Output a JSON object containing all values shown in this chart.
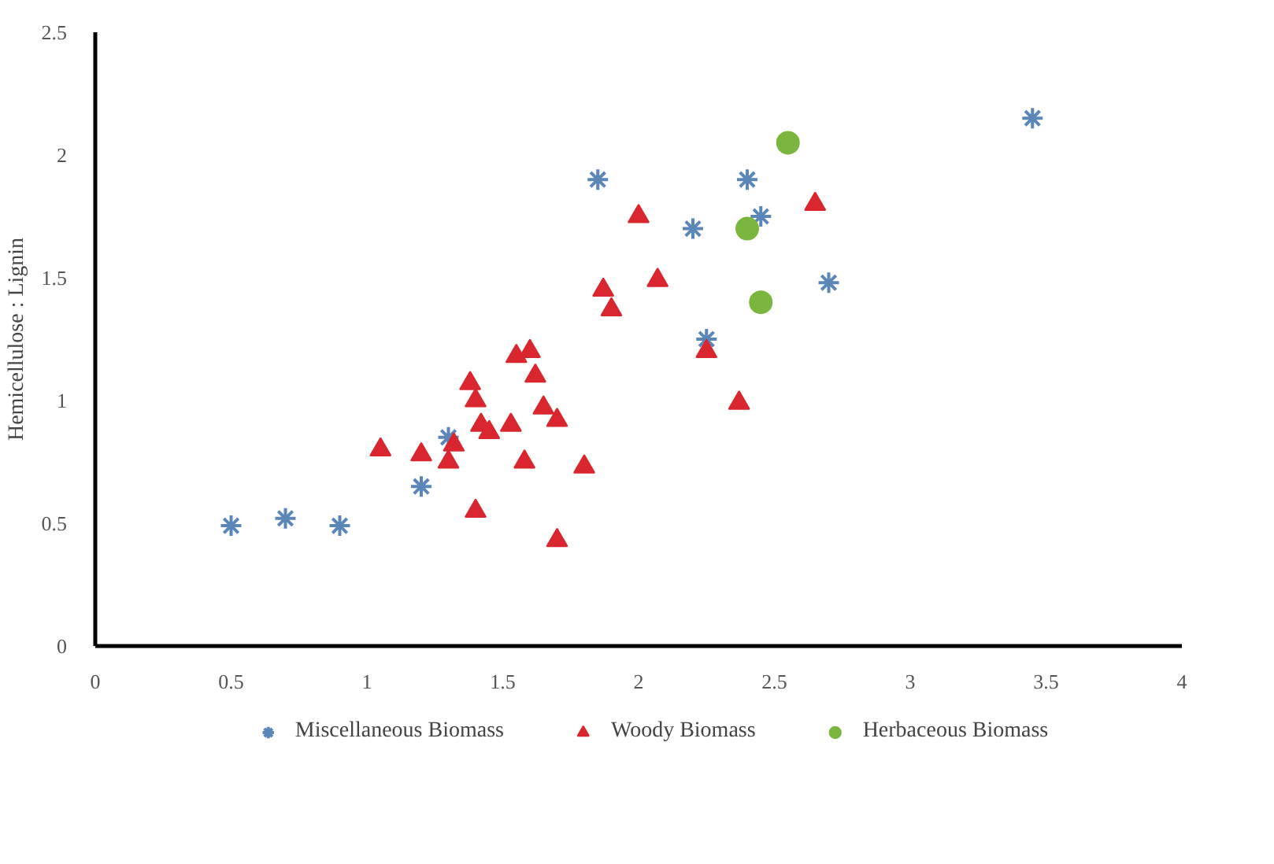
{
  "chart_data": {
    "type": "scatter",
    "ylabel": "Hemicellulose : Lignin",
    "xlim": [
      0,
      4
    ],
    "xticks": [
      0,
      0.5,
      1,
      1.5,
      2,
      2.5,
      3,
      3.5,
      4
    ],
    "ylim": [
      0,
      2.5
    ],
    "yticks": [
      0,
      0.5,
      1,
      1.5,
      2,
      2.5
    ],
    "grid": false,
    "legend": "bottom",
    "series": [
      {
        "name": "Miscellaneous Biomass",
        "color": "#5b87b8",
        "marker": "cross",
        "x": [
          0.5,
          0.7,
          0.9,
          1.2,
          1.3,
          1.85,
          2.2,
          2.4,
          2.45,
          2.25,
          2.7,
          3.45
        ],
        "values": [
          0.49,
          0.52,
          0.49,
          0.65,
          0.85,
          1.9,
          1.7,
          1.9,
          1.75,
          1.25,
          1.48,
          2.15
        ]
      },
      {
        "name": "Woody Biomass",
        "color": "#d9262f",
        "marker": "triangle",
        "x": [
          1.05,
          1.2,
          1.3,
          1.32,
          1.38,
          1.4,
          1.42,
          1.45,
          1.4,
          1.53,
          1.55,
          1.6,
          1.62,
          1.65,
          1.7,
          1.58,
          1.8,
          1.7,
          1.87,
          1.9,
          2.0,
          2.07,
          2.25,
          2.37,
          2.65
        ],
        "values": [
          0.8,
          0.78,
          0.75,
          0.82,
          1.07,
          1.0,
          0.9,
          0.87,
          0.55,
          0.9,
          1.18,
          1.2,
          1.1,
          0.97,
          0.92,
          0.75,
          0.73,
          0.43,
          1.45,
          1.37,
          1.75,
          1.49,
          1.2,
          0.99,
          1.8
        ]
      },
      {
        "name": "Herbaceous Biomass",
        "color": "#7ab63e",
        "marker": "circle",
        "x": [
          2.55,
          2.4,
          2.45
        ],
        "values": [
          2.05,
          1.7,
          1.4
        ]
      }
    ]
  }
}
